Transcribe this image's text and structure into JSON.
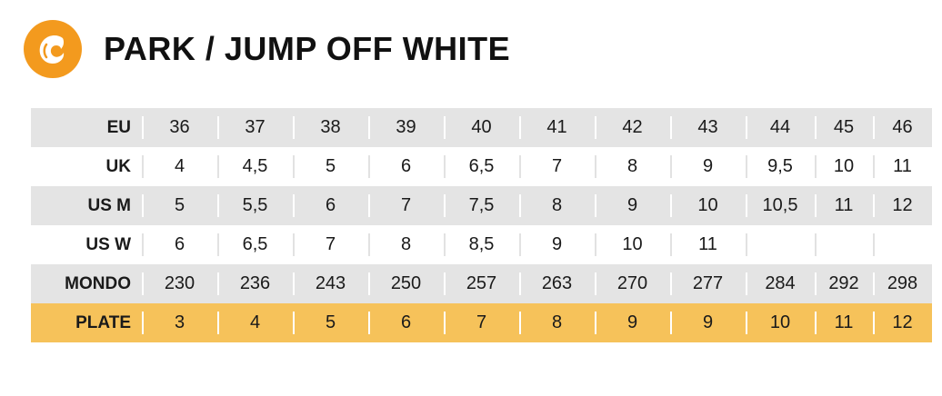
{
  "title": "PARK / JUMP OFF WHITE",
  "logo_icon": "orange-wave-logo",
  "colors": {
    "accent": "#f39a1e",
    "plate_row": "#f6c25a",
    "shaded_row": "#e4e4e4"
  },
  "rows": [
    {
      "label": "EU",
      "cells": [
        "36",
        "37",
        "38",
        "39",
        "40",
        "41",
        "42",
        "43",
        "44",
        "45",
        "46"
      ]
    },
    {
      "label": "UK",
      "cells": [
        "4",
        "4,5",
        "5",
        "6",
        "6,5",
        "7",
        "8",
        "9",
        "9,5",
        "10",
        "11"
      ]
    },
    {
      "label": "US M",
      "cells": [
        "5",
        "5,5",
        "6",
        "7",
        "7,5",
        "8",
        "9",
        "10",
        "10,5",
        "11",
        "12"
      ]
    },
    {
      "label": "US W",
      "cells": [
        "6",
        "6,5",
        "7",
        "8",
        "8,5",
        "9",
        "10",
        "11",
        "",
        "",
        ""
      ]
    },
    {
      "label": "MONDO",
      "cells": [
        "230",
        "236",
        "243",
        "250",
        "257",
        "263",
        "270",
        "277",
        "284",
        "292",
        "298"
      ]
    },
    {
      "label": "PLATE",
      "cells": [
        "3",
        "4",
        "5",
        "6",
        "7",
        "8",
        "9",
        "9",
        "10",
        "11",
        "12"
      ]
    }
  ]
}
